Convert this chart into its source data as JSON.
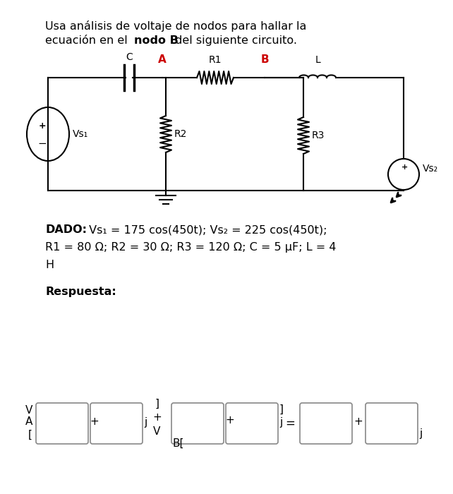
{
  "title_line1": "Usa análisis de voltaje de nodos para hallar la",
  "title_line2_pre": "ecuación en el ",
  "title_bold": "nodo B",
  "title_line2_post": " del siguiente circuito.",
  "dado_bold": "DADO:",
  "dado_rest1": " Vs₁ = 175 cos(450t); Vs₂ = 225 cos(450t);",
  "dado_line2": "R1 = 80 Ω; R2 = 30 Ω; R3 = 120 Ω; C = 5 μF; L = 4",
  "dado_line3": "H",
  "respuesta": "Respuesta:",
  "bg_color": "#ffffff",
  "text_color": "#000000",
  "red_color": "#cc0000",
  "lw": 1.5
}
